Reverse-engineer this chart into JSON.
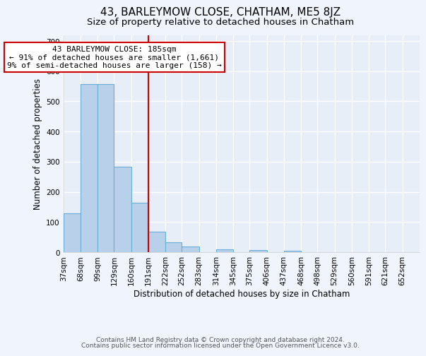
{
  "title": "43, BARLEYMOW CLOSE, CHATHAM, ME5 8JZ",
  "subtitle": "Size of property relative to detached houses in Chatham",
  "xlabel": "Distribution of detached houses by size in Chatham",
  "ylabel": "Number of detached properties",
  "bin_labels": [
    "37sqm",
    "68sqm",
    "99sqm",
    "129sqm",
    "160sqm",
    "191sqm",
    "222sqm",
    "252sqm",
    "283sqm",
    "314sqm",
    "345sqm",
    "375sqm",
    "406sqm",
    "437sqm",
    "468sqm",
    "498sqm",
    "529sqm",
    "560sqm",
    "591sqm",
    "621sqm",
    "652sqm"
  ],
  "bar_values": [
    128,
    557,
    557,
    284,
    165,
    68,
    33,
    19,
    0,
    10,
    0,
    7,
    0,
    4,
    0,
    0,
    0,
    0,
    0,
    0,
    0
  ],
  "bar_color": "#b8d0ea",
  "bar_edgecolor": "#6aaed6",
  "bin_edges": [
    37,
    68,
    99,
    129,
    160,
    191,
    222,
    252,
    283,
    314,
    345,
    375,
    406,
    437,
    468,
    498,
    529,
    560,
    591,
    621,
    652
  ],
  "vline_color": "#cc0000",
  "vline_x": 191,
  "box_text_line1": "43 BARLEYMOW CLOSE: 185sqm",
  "box_text_line2": "← 91% of detached houses are smaller (1,661)",
  "box_text_line3": "9% of semi-detached houses are larger (158) →",
  "box_facecolor": "#ffffff",
  "box_edgecolor": "#cc0000",
  "ylim": [
    0,
    720
  ],
  "yticks": [
    0,
    100,
    200,
    300,
    400,
    500,
    600,
    700
  ],
  "footer_line1": "Contains HM Land Registry data © Crown copyright and database right 2024.",
  "footer_line2": "Contains public sector information licensed under the Open Government Licence v3.0.",
  "background_color": "#f0f4fc",
  "plot_bg_color": "#e8eef8",
  "grid_color": "#ffffff",
  "title_fontsize": 11,
  "subtitle_fontsize": 9.5,
  "axis_label_fontsize": 8.5,
  "tick_fontsize": 7.5,
  "footer_fontsize": 6.5,
  "annotation_fontsize": 8
}
